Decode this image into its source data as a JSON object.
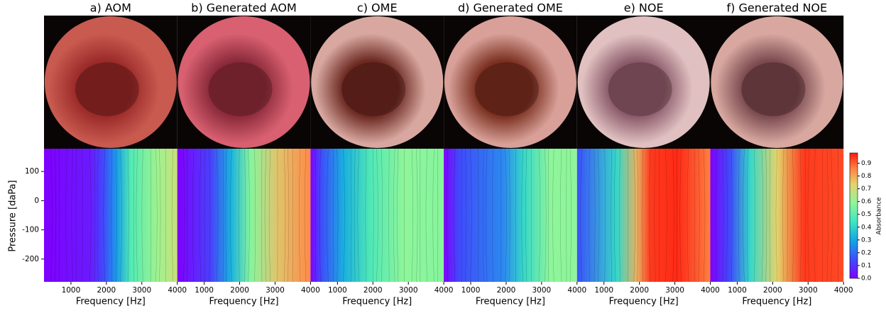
{
  "figure": {
    "panels": [
      {
        "title": "a) AOM"
      },
      {
        "title": "b) Generated AOM"
      },
      {
        "title": "c) OME"
      },
      {
        "title": "d) Generated OME"
      },
      {
        "title": "e) NOE"
      },
      {
        "title": "f) Generated NOE"
      }
    ],
    "xlabel": "Frequency [Hz]",
    "ylabel": "Pressure [daPa]",
    "xlim": [
      240,
      4000
    ],
    "xticks": [
      1000,
      2000,
      3000,
      4000
    ],
    "ylim": [
      -278,
      178
    ],
    "yticks": [
      100,
      0,
      -100,
      -200
    ],
    "colorbar": {
      "label": "Absorbance",
      "lim": [
        0,
        0.98
      ],
      "ticks": [
        {
          "value": 0,
          "label": "0.0"
        },
        {
          "value": 0.1,
          "label": "0.1"
        },
        {
          "value": 0.2,
          "label": "0.2"
        },
        {
          "value": 0.3,
          "label": "0.3"
        },
        {
          "value": 0.4,
          "label": "0.4"
        },
        {
          "value": 0.5,
          "label": "0.5"
        },
        {
          "value": 0.6,
          "label": "0.6"
        },
        {
          "value": 0.7,
          "label": "0.7"
        },
        {
          "value": 0.8,
          "label": "0.8"
        },
        {
          "value": 0.9,
          "label": "0.9"
        }
      ]
    }
  }
}
